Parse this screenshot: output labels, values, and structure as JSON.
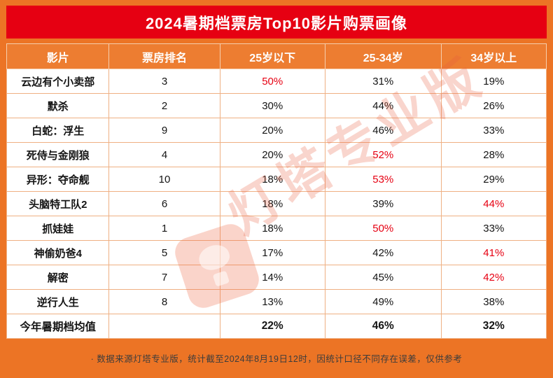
{
  "title": "2024暑期档票房Top10影片购票画像",
  "chart_data": {
    "type": "table",
    "title": "2024暑期档票房Top10影片购票画像",
    "columns": [
      "影片",
      "票房排名",
      "25岁以下",
      "25-34岁",
      "34岁以上"
    ],
    "rows": [
      {
        "cells": [
          "云边有个小卖部",
          "3",
          "50%",
          "31%",
          "19%"
        ],
        "red_cols": [
          2
        ]
      },
      {
        "cells": [
          "默杀",
          "2",
          "30%",
          "44%",
          "26%"
        ],
        "red_cols": []
      },
      {
        "cells": [
          "白蛇：浮生",
          "9",
          "20%",
          "46%",
          "33%"
        ],
        "red_cols": []
      },
      {
        "cells": [
          "死侍与金刚狼",
          "4",
          "20%",
          "52%",
          "28%"
        ],
        "red_cols": [
          3
        ]
      },
      {
        "cells": [
          "异形：夺命舰",
          "10",
          "18%",
          "53%",
          "29%"
        ],
        "red_cols": [
          3
        ]
      },
      {
        "cells": [
          "头脑特工队2",
          "6",
          "18%",
          "39%",
          "44%"
        ],
        "red_cols": [
          4
        ]
      },
      {
        "cells": [
          "抓娃娃",
          "1",
          "18%",
          "50%",
          "33%"
        ],
        "red_cols": [
          3
        ]
      },
      {
        "cells": [
          "神偷奶爸4",
          "5",
          "17%",
          "42%",
          "41%"
        ],
        "red_cols": [
          4
        ]
      },
      {
        "cells": [
          "解密",
          "7",
          "14%",
          "45%",
          "42%"
        ],
        "red_cols": [
          4
        ]
      },
      {
        "cells": [
          "逆行人生",
          "8",
          "13%",
          "49%",
          "38%"
        ],
        "red_cols": []
      }
    ],
    "summary": {
      "cells": [
        "今年暑期档均值",
        "",
        "22%",
        "46%",
        "32%"
      ]
    }
  },
  "footnote": "·  数据来源灯塔专业版，统计截至2024年8月19日12时，因统计口径不同存在误差，仅供参考",
  "watermark": {
    "text": "灯塔专业版"
  },
  "colors": {
    "frame": "#ec7425",
    "title_bg": "#e60012",
    "header_bg": "#ed7d31",
    "highlight_red": "#e60012",
    "grid_line": "#efb083"
  }
}
